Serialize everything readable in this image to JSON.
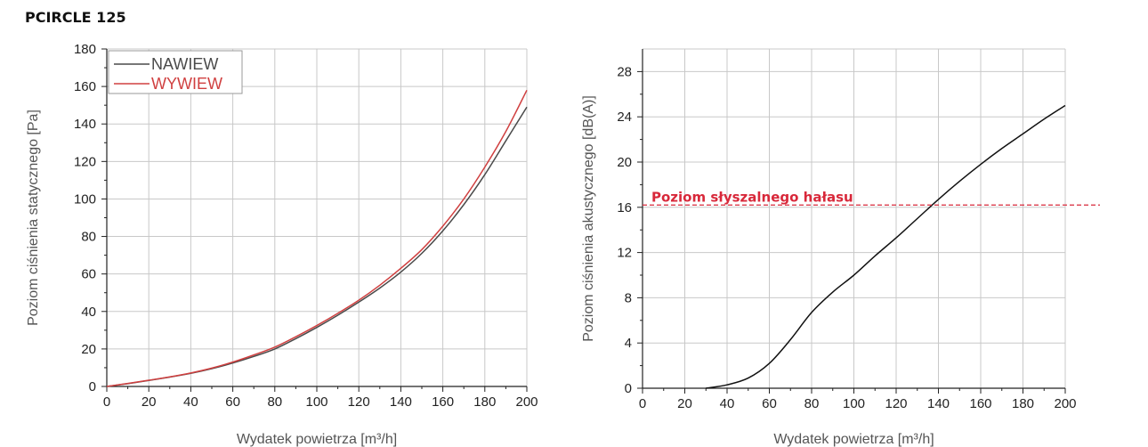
{
  "title": "PCIRCLE 125",
  "chart_data": [
    {
      "type": "line",
      "xlabel": "Wydatek powietrza [m³/h]",
      "ylabel": "Poziom ciśnienia statycznego [Pa]",
      "xlim": [
        0,
        200
      ],
      "ylim": [
        0,
        180
      ],
      "x_ticks": [
        0,
        20,
        40,
        60,
        80,
        100,
        120,
        140,
        160,
        180,
        200
      ],
      "y_ticks": [
        0,
        20,
        40,
        60,
        80,
        100,
        120,
        140,
        160,
        180
      ],
      "grid": true,
      "legend_position": "top-left",
      "series": [
        {
          "name": "NAWIEW",
          "color": "#4a4a4a",
          "x": [
            0,
            10,
            20,
            30,
            40,
            50,
            60,
            70,
            80,
            90,
            100,
            110,
            120,
            130,
            140,
            150,
            160,
            170,
            180,
            190,
            200
          ],
          "y": [
            0,
            1.5,
            3.2,
            5,
            7,
            9.5,
            12.5,
            16,
            20,
            25.5,
            31.5,
            38,
            45,
            52.5,
            61,
            71,
            83,
            97,
            113,
            131,
            149
          ]
        },
        {
          "name": "WYWIEW",
          "color": "#d04040",
          "x": [
            0,
            10,
            20,
            30,
            40,
            50,
            60,
            70,
            80,
            90,
            100,
            110,
            120,
            130,
            140,
            150,
            160,
            170,
            180,
            190,
            200
          ],
          "y": [
            0,
            1.6,
            3.3,
            5.1,
            7.2,
            9.8,
            13,
            16.8,
            21,
            26.5,
            32.5,
            39,
            46,
            54,
            63,
            73,
            85.5,
            100,
            117,
            136,
            158
          ]
        }
      ]
    },
    {
      "type": "line",
      "xlabel": "Wydatek powietrza [m³/h]",
      "ylabel": "Poziom ciśnienia akustycznego [dB(A)]",
      "xlim": [
        0,
        200
      ],
      "ylim": [
        0,
        30
      ],
      "x_ticks": [
        0,
        20,
        40,
        60,
        80,
        100,
        120,
        140,
        160,
        180,
        200
      ],
      "y_ticks": [
        0,
        4,
        8,
        12,
        16,
        20,
        24,
        28
      ],
      "grid": true,
      "series": [
        {
          "color": "#111111",
          "x": [
            30,
            40,
            50,
            60,
            70,
            80,
            90,
            100,
            110,
            120,
            130,
            140,
            150,
            160,
            170,
            180,
            190,
            200
          ],
          "y": [
            0,
            0.3,
            0.9,
            2.2,
            4.3,
            6.7,
            8.5,
            10.0,
            11.7,
            13.3,
            15.0,
            16.7,
            18.3,
            19.8,
            21.2,
            22.5,
            23.8,
            25.0
          ]
        }
      ],
      "reference_line": {
        "label": "Poziom słyszalnego hałasu",
        "y": 16.2,
        "color": "#d8283a",
        "style": "dashed"
      }
    }
  ]
}
